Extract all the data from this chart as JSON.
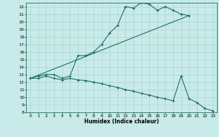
{
  "bg_color": "#c8eae8",
  "line_color": "#1a6b5e",
  "grid_color": "#a8d4d0",
  "xlabel": "Humidex (Indice chaleur)",
  "ylim": [
    8,
    22.5
  ],
  "xlim": [
    -0.5,
    23.5
  ],
  "yticks": [
    8,
    9,
    10,
    11,
    12,
    13,
    14,
    15,
    16,
    17,
    18,
    19,
    20,
    21,
    22
  ],
  "xticks": [
    0,
    1,
    2,
    3,
    4,
    5,
    6,
    7,
    8,
    9,
    10,
    11,
    12,
    13,
    14,
    15,
    16,
    17,
    18,
    19,
    20,
    21,
    22,
    23
  ],
  "line1_x": [
    0,
    1,
    2,
    3,
    4,
    5,
    6,
    7,
    8,
    9,
    10,
    11,
    12,
    13,
    14,
    15,
    16,
    17,
    18,
    19,
    20
  ],
  "line1_y": [
    12.5,
    12.8,
    13.0,
    13.0,
    12.5,
    12.8,
    15.5,
    15.5,
    16.0,
    17.0,
    18.5,
    19.5,
    22.0,
    21.8,
    22.5,
    22.3,
    21.5,
    22.0,
    21.5,
    21.0,
    20.8
  ],
  "line2_x": [
    0,
    20
  ],
  "line2_y": [
    12.5,
    20.8
  ],
  "line3_x": [
    0,
    1,
    2,
    3,
    4,
    5,
    6,
    7,
    8,
    9,
    10,
    11,
    12,
    13,
    14,
    15,
    16,
    17,
    18,
    19,
    20,
    21,
    22,
    23
  ],
  "line3_y": [
    12.5,
    12.5,
    12.8,
    12.5,
    12.3,
    12.5,
    12.3,
    12.2,
    12.0,
    11.8,
    11.5,
    11.3,
    11.0,
    10.8,
    10.5,
    10.3,
    10.0,
    9.8,
    9.5,
    12.8,
    9.8,
    9.3,
    8.5,
    8.2
  ]
}
